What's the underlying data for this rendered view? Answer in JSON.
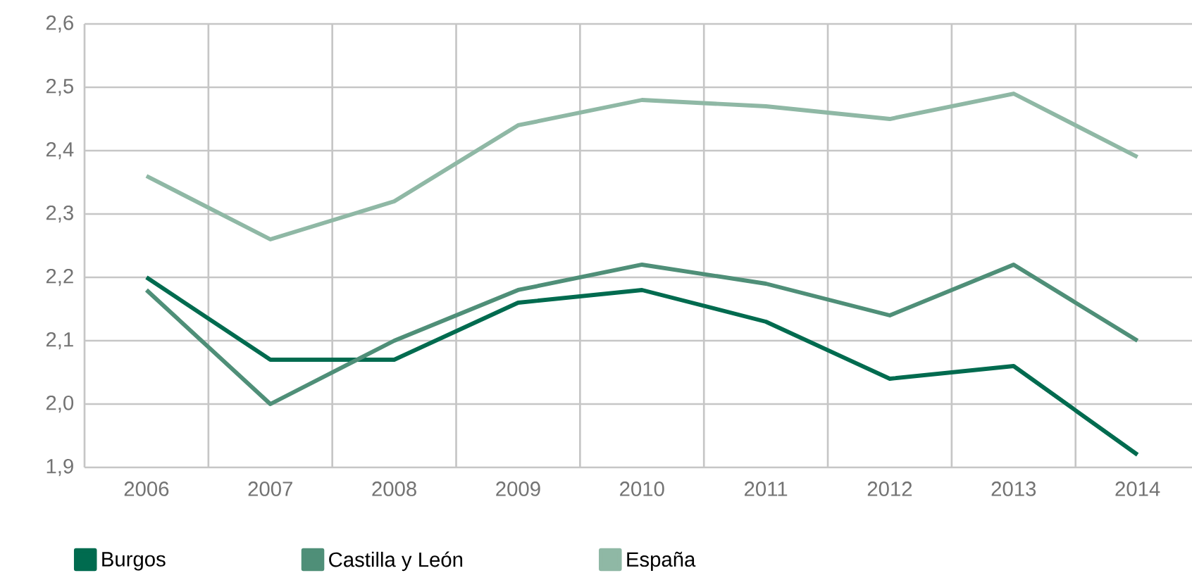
{
  "chart_data": {
    "type": "line",
    "categories": [
      "2006",
      "2007",
      "2008",
      "2009",
      "2010",
      "2011",
      "2012",
      "2013",
      "2014"
    ],
    "series": [
      {
        "name": "Burgos",
        "color": "#006b4f",
        "values": [
          2.2,
          2.07,
          2.07,
          2.16,
          2.18,
          2.13,
          2.04,
          2.06,
          1.92
        ]
      },
      {
        "name": "Castilla y León",
        "color": "#4f8f78",
        "values": [
          2.18,
          2.0,
          2.1,
          2.18,
          2.22,
          2.19,
          2.14,
          2.22,
          2.1
        ]
      },
      {
        "name": "España",
        "color": "#8fb8a5",
        "values": [
          2.36,
          2.26,
          2.32,
          2.44,
          2.48,
          2.47,
          2.45,
          2.49,
          2.39
        ]
      }
    ],
    "ylim": [
      1.9,
      2.6
    ],
    "yticks": [
      {
        "value": 1.9,
        "label": "1,9"
      },
      {
        "value": 2.0,
        "label": "2,0"
      },
      {
        "value": 2.1,
        "label": "2,1"
      },
      {
        "value": 2.2,
        "label": "2,2"
      },
      {
        "value": 2.3,
        "label": "2,3"
      },
      {
        "value": 2.4,
        "label": "2,4"
      },
      {
        "value": 2.5,
        "label": "2,5"
      },
      {
        "value": 2.6,
        "label": "2,6"
      }
    ],
    "grid": true,
    "legend": "bottom left",
    "marker": "none",
    "line_style": "solid"
  }
}
